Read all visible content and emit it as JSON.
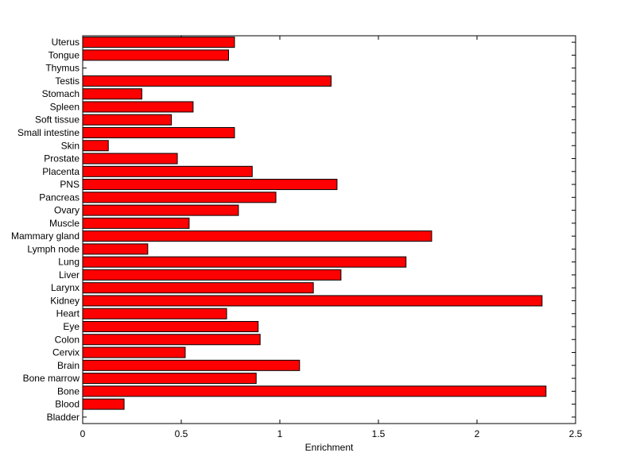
{
  "chart_data": {
    "type": "bar",
    "orientation": "horizontal",
    "categories": [
      "Bladder",
      "Blood",
      "Bone",
      "Bone marrow",
      "Brain",
      "Cervix",
      "Colon",
      "Eye",
      "Heart",
      "Kidney",
      "Larynx",
      "Liver",
      "Lung",
      "Lymph node",
      "Mammary gland",
      "Muscle",
      "Ovary",
      "Pancreas",
      "PNS",
      "Placenta",
      "Prostate",
      "Skin",
      "Small intestine",
      "Soft tissue",
      "Spleen",
      "Stomach",
      "Testis",
      "Thymus",
      "Tongue",
      "Uterus"
    ],
    "values": [
      0,
      0.21,
      2.35,
      0.88,
      1.1,
      0.52,
      0.9,
      0.89,
      0.73,
      2.33,
      1.17,
      1.31,
      1.64,
      0.33,
      1.77,
      0.54,
      0.79,
      0.98,
      1.29,
      0.86,
      0.48,
      0.13,
      0.77,
      0.45,
      0.56,
      0.3,
      1.26,
      0,
      0.74,
      0.77
    ],
    "xlabel": "Enrichment",
    "ylabel": "",
    "title": "",
    "xlim": [
      0,
      2.5
    ],
    "xticks": [
      "0",
      "0.5",
      "1",
      "1.5",
      "2",
      "2.5"
    ],
    "bar_color": "#ff0000",
    "grid": false
  }
}
